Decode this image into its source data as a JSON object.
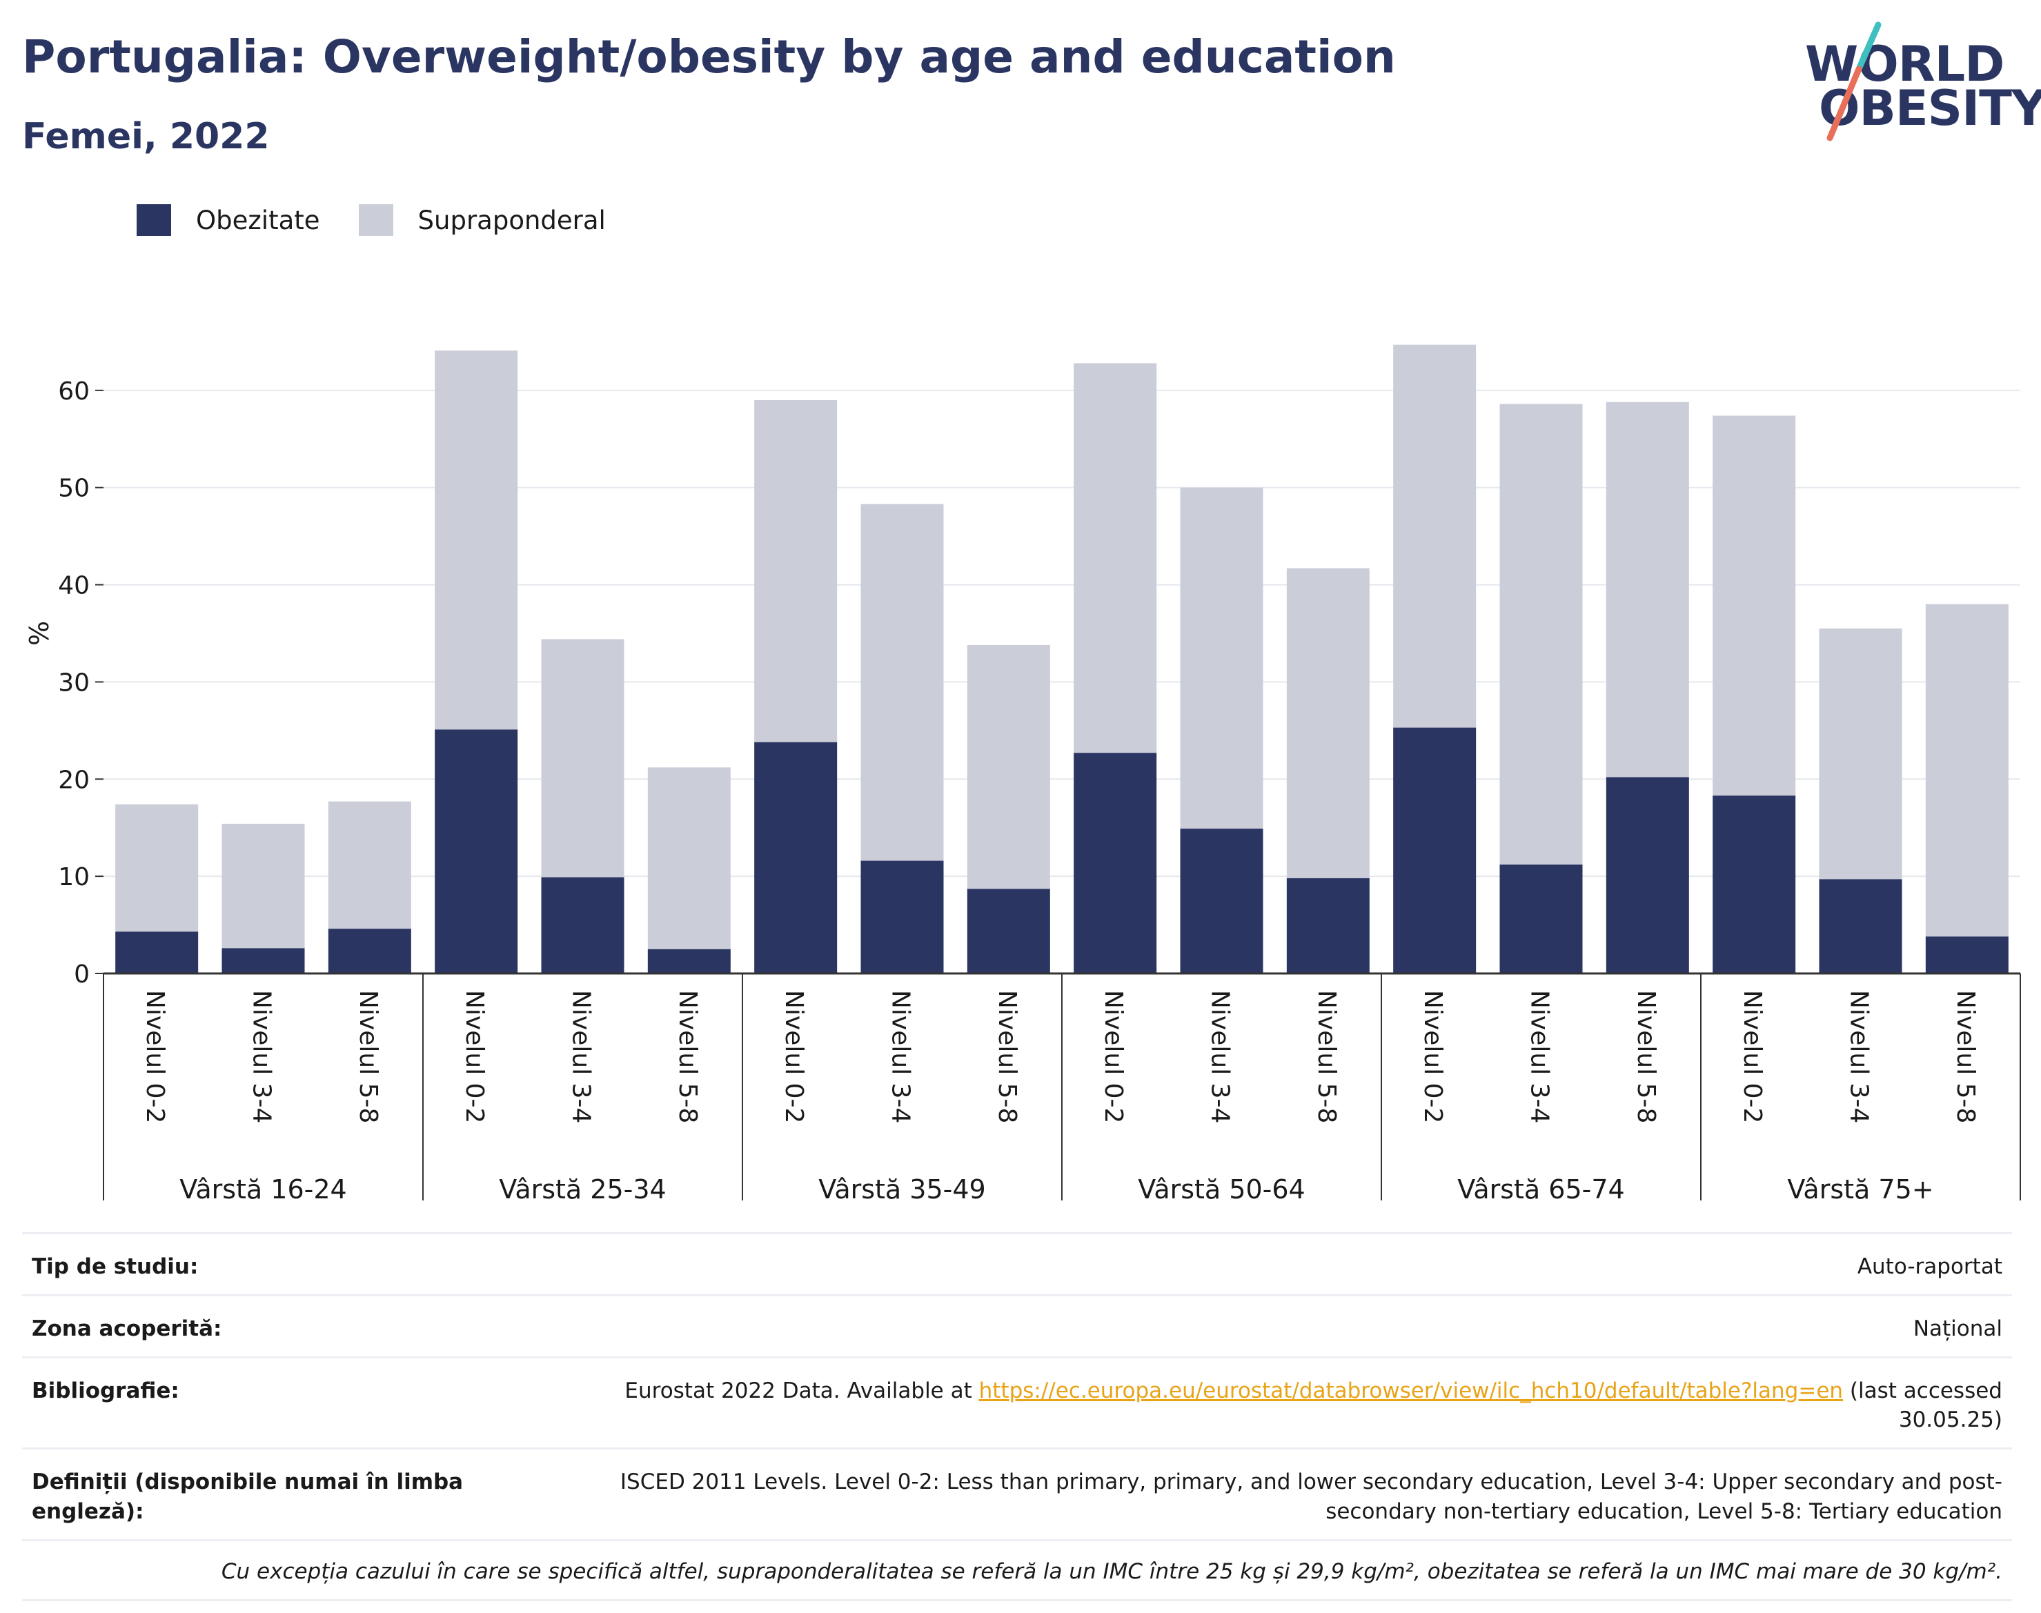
{
  "header": {
    "title": "Portugalia: Overweight/obesity by age and education",
    "subtitle": "Femei, 2022"
  },
  "logo": {
    "line1": "WORLD",
    "line2": "OBESITY"
  },
  "colors": {
    "obese": "#2a3562",
    "overweight": "#cbcdd8",
    "title": "#2a3562",
    "logo_teal": "#3fbfbf",
    "logo_coral": "#e8705a",
    "link": "#e8a317"
  },
  "chart_data": {
    "type": "bar",
    "stacked": true,
    "ylabel": "%",
    "ylim": [
      0,
      70
    ],
    "yticks": [
      0,
      10,
      20,
      30,
      40,
      50,
      60
    ],
    "grid": true,
    "legend_position": "top-left",
    "groups": [
      {
        "label": "Vârstă 16-24",
        "categories": [
          "Nivelul 0-2",
          "Nivelul 3-4",
          "Nivelul 5-8"
        ]
      },
      {
        "label": "Vârstă 25-34",
        "categories": [
          "Nivelul 0-2",
          "Nivelul 3-4",
          "Nivelul 5-8"
        ]
      },
      {
        "label": "Vârstă 35-49",
        "categories": [
          "Nivelul 0-2",
          "Nivelul 3-4",
          "Nivelul 5-8"
        ]
      },
      {
        "label": "Vârstă 50-64",
        "categories": [
          "Nivelul 0-2",
          "Nivelul 3-4",
          "Nivelul 5-8"
        ]
      },
      {
        "label": "Vârstă 65-74",
        "categories": [
          "Nivelul 0-2",
          "Nivelul 3-4",
          "Nivelul 5-8"
        ]
      },
      {
        "label": "Vârstă 75+",
        "categories": [
          "Nivelul 0-2",
          "Nivelul 3-4",
          "Nivelul 5-8"
        ]
      }
    ],
    "series": [
      {
        "name": "Obezitate",
        "values": [
          4.3,
          2.6,
          4.6,
          25.1,
          9.9,
          2.5,
          23.8,
          11.6,
          8.7,
          22.7,
          14.9,
          9.8,
          25.3,
          11.2,
          20.2,
          18.3,
          9.7,
          3.8
        ]
      },
      {
        "name": "Supraponderal",
        "values": [
          13.1,
          12.8,
          13.1,
          39.0,
          24.5,
          18.7,
          35.2,
          36.7,
          25.1,
          40.1,
          35.1,
          31.9,
          39.4,
          47.4,
          38.6,
          39.1,
          25.8,
          34.2
        ]
      }
    ]
  },
  "info": {
    "rows": [
      {
        "key": "Tip de studiu:",
        "value": "Auto-raportat"
      },
      {
        "key": "Zona acoperită:",
        "value": "Național"
      }
    ],
    "bibliography": {
      "key": "Bibliografie:",
      "prefix": "Eurostat 2022 Data. Available at ",
      "link": "https://ec.europa.eu/eurostat/databrowser/view/ilc_hch10/default/table?lang=en",
      "suffix": " (last accessed 30.05.25)"
    },
    "definitions": {
      "key": "Definiții (disponibile numai în limba engleză):",
      "value": "ISCED 2011 Levels. Level 0-2: Less than primary, primary, and lower secondary education, Level 3-4: Upper secondary and post-secondary non-tertiary education, Level 5-8: Tertiary education"
    },
    "note": "Cu excepția cazului în care se specifică altfel, supraponderalitatea se referă la un IMC între 25 kg și 29,9 kg/m², obezitatea se referă la un IMC mai mare de 30 kg/m²."
  }
}
